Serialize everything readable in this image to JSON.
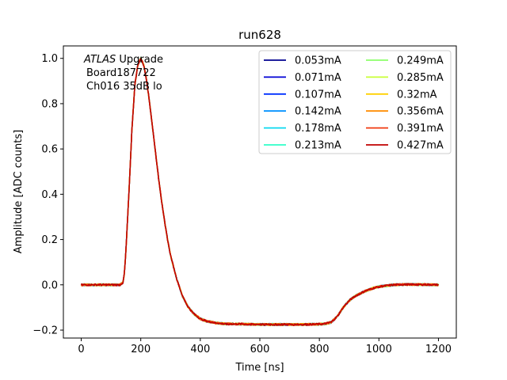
{
  "chart_data": {
    "type": "line",
    "title": "run628",
    "xlabel": "Time [ns]",
    "ylabel": "Amplitude [ADC counts]",
    "xlim": [
      -60,
      1260
    ],
    "ylim": [
      -0.235,
      1.055
    ],
    "xticks": [
      0,
      200,
      400,
      600,
      800,
      1000,
      1200
    ],
    "yticks": [
      -0.2,
      0.0,
      0.2,
      0.4,
      0.6,
      0.8,
      1.0
    ],
    "ytick_labels": [
      "−0.2",
      "0.0",
      "0.2",
      "0.4",
      "0.6",
      "0.8",
      "1.0"
    ],
    "annotation": {
      "line1_italic": "ATLAS",
      "line1_rest": " Upgrade",
      "line2": "Board187722",
      "line3": "Ch016 35dB lo"
    },
    "legend": {
      "position": "top-right",
      "columns": 2
    },
    "pulse_shape": {
      "x": [
        0,
        50,
        100,
        130,
        140,
        145,
        150,
        160,
        170,
        180,
        190,
        200,
        210,
        220,
        230,
        240,
        250,
        260,
        270,
        280,
        290,
        300,
        320,
        340,
        360,
        380,
        400,
        420,
        450,
        480,
        520,
        560,
        600,
        650,
        700,
        750,
        800,
        820,
        840,
        860,
        880,
        900,
        920,
        950,
        980,
        1000,
        1050,
        1100,
        1150,
        1200
      ],
      "y": [
        0.0,
        0.0,
        0.0,
        0.0,
        0.01,
        0.05,
        0.15,
        0.4,
        0.68,
        0.88,
        0.97,
        1.0,
        0.97,
        0.9,
        0.8,
        0.69,
        0.58,
        0.47,
        0.37,
        0.28,
        0.2,
        0.13,
        0.03,
        -0.05,
        -0.1,
        -0.13,
        -0.15,
        -0.16,
        -0.168,
        -0.172,
        -0.173,
        -0.174,
        -0.175,
        -0.175,
        -0.175,
        -0.175,
        -0.174,
        -0.172,
        -0.165,
        -0.14,
        -0.1,
        -0.07,
        -0.05,
        -0.03,
        -0.015,
        -0.008,
        0.0,
        0.002,
        0.001,
        0.0
      ]
    },
    "series": [
      {
        "name": "0.053mA",
        "color": "#00008f"
      },
      {
        "name": "0.071mA",
        "color": "#0000d4"
      },
      {
        "name": "0.107mA",
        "color": "#0030ff"
      },
      {
        "name": "0.142mA",
        "color": "#0090ff"
      },
      {
        "name": "0.178mA",
        "color": "#0ad8f0"
      },
      {
        "name": "0.213mA",
        "color": "#2effc8"
      },
      {
        "name": "0.249mA",
        "color": "#8cff6a"
      },
      {
        "name": "0.285mA",
        "color": "#c8ff36"
      },
      {
        "name": "0.32mA",
        "color": "#ffd000"
      },
      {
        "name": "0.356mA",
        "color": "#ff8c00"
      },
      {
        "name": "0.391mA",
        "color": "#f03a10"
      },
      {
        "name": "0.427mA",
        "color": "#c00000"
      }
    ]
  }
}
